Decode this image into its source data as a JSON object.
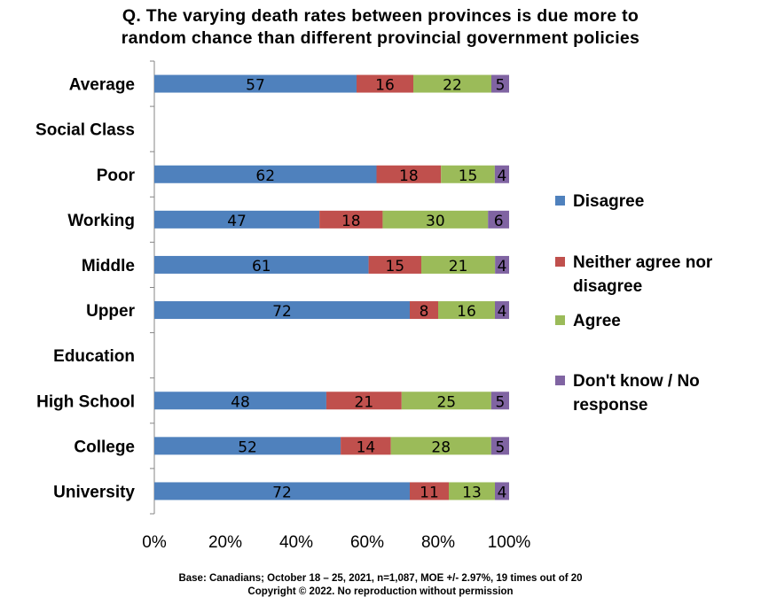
{
  "title_line1": "Q. The varying death rates between provinces is due more to",
  "title_line2": "random chance than different provincial government policies",
  "footer_line1": "Base: Canadians; October 18 – 25, 2021, n=1,087, MOE +/- 2.97%, 19 times out of 20",
  "footer_line2": "Copyright © 2022. No reproduction without permission",
  "colors": {
    "disagree": "#4f81bd",
    "neither": "#c0504d",
    "agree": "#9bbb59",
    "dontknow": "#8064a2"
  },
  "legend": [
    {
      "line1": "Disagree",
      "line2": "",
      "color": "#4f81bd"
    },
    {
      "line1": "Neither agree nor",
      "line2": "disagree",
      "color": "#c0504d"
    },
    {
      "line1": "Agree",
      "line2": "",
      "color": "#9bbb59"
    },
    {
      "line1": "Don't know / No",
      "line2": "response",
      "color": "#8064a2"
    }
  ],
  "chart_data": {
    "type": "bar",
    "orientation": "horizontal",
    "stacked": "percent",
    "categories": [
      "Average",
      "Social Class",
      "Poor",
      "Working",
      "Middle",
      "Upper",
      "Education",
      "High School",
      "College",
      "University"
    ],
    "series": [
      {
        "name": "Disagree",
        "color": "#4f81bd",
        "values": [
          57,
          null,
          62,
          47,
          61,
          72,
          null,
          48,
          52,
          72
        ]
      },
      {
        "name": "Neither agree nor disagree",
        "color": "#c0504d",
        "values": [
          16,
          null,
          18,
          18,
          15,
          8,
          null,
          21,
          14,
          11
        ]
      },
      {
        "name": "Agree",
        "color": "#9bbb59",
        "values": [
          22,
          null,
          15,
          30,
          21,
          16,
          null,
          25,
          28,
          13
        ]
      },
      {
        "name": "Don't know / No response",
        "color": "#8064a2",
        "values": [
          5,
          null,
          4,
          6,
          4,
          4,
          null,
          5,
          5,
          4
        ]
      }
    ],
    "xlim": [
      0,
      100
    ],
    "xticks": [
      "0%",
      "20%",
      "40%",
      "60%",
      "80%",
      "100%"
    ],
    "grid": false,
    "legend_position": "right"
  }
}
